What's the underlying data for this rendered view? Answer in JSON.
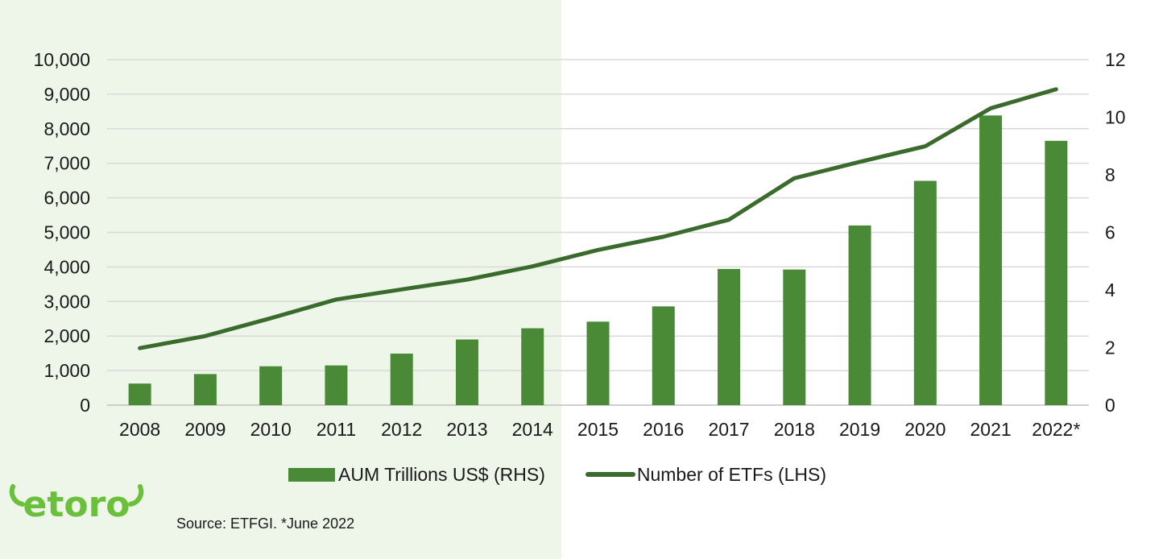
{
  "brand": {
    "logo_text": "eToro"
  },
  "source_note": "Source: ETFGI. *June 2022",
  "colors": {
    "bar": "#4a8a37",
    "line": "#3a6b2c",
    "panel": "#eef6ea",
    "grid": "#d9d9d9"
  },
  "chart_data": {
    "type": "bar",
    "categories": [
      "2008",
      "2009",
      "2010",
      "2011",
      "2012",
      "2013",
      "2014",
      "2015",
      "2016",
      "2017",
      "2018",
      "2019",
      "2020",
      "2021",
      "2022*"
    ],
    "series": [
      {
        "name": "AUM Trillions US$ (RHS)",
        "type": "bar",
        "axis": "left",
        "values": [
          0.75,
          1.08,
          1.35,
          1.38,
          1.79,
          2.28,
          2.67,
          2.9,
          3.43,
          4.73,
          4.71,
          6.24,
          7.79,
          10.06,
          9.18
        ]
      },
      {
        "name": "Number of ETFs (LHS)",
        "type": "line",
        "axis": "right",
        "values": [
          1.98,
          2.4,
          3.02,
          3.67,
          4.02,
          4.36,
          4.82,
          5.39,
          5.85,
          6.44,
          7.88,
          8.45,
          8.99,
          10.31,
          10.97
        ]
      }
    ],
    "y_left": {
      "ylim": [
        0,
        10000
      ],
      "ticks": [
        "0",
        "1,000",
        "2,000",
        "3,000",
        "4,000",
        "5,000",
        "6,000",
        "7,000",
        "8,000",
        "9,000",
        "10,000"
      ]
    },
    "y_right": {
      "ylim": [
        0,
        12
      ],
      "ticks": [
        "0",
        "2",
        "4",
        "6",
        "8",
        "10",
        "12"
      ]
    },
    "grid": true,
    "legend": "bottom",
    "title": "",
    "xlabel": "",
    "ylabel": ""
  }
}
